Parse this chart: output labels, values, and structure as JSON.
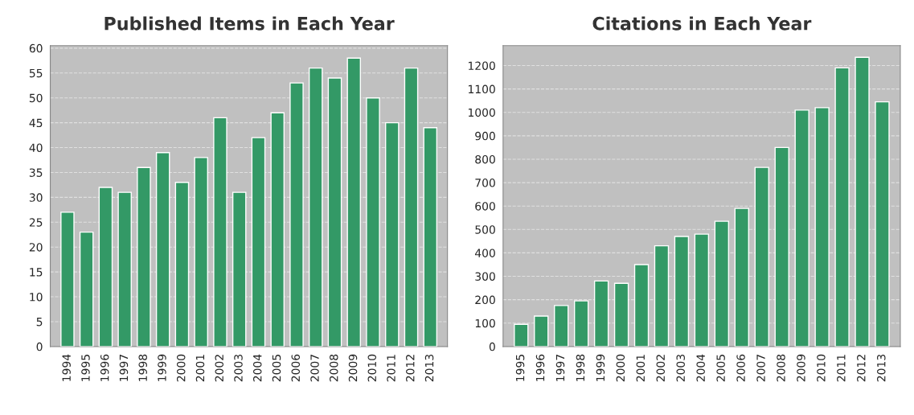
{
  "chart_data": [
    {
      "type": "bar",
      "title": "Published Items in Each Year",
      "categories": [
        "1994",
        "1995",
        "1996",
        "1997",
        "1998",
        "1999",
        "2000",
        "2001",
        "2002",
        "2003",
        "2004",
        "2005",
        "2006",
        "2007",
        "2008",
        "2009",
        "2010",
        "2011",
        "2012",
        "2013"
      ],
      "values": [
        27,
        23,
        32,
        31,
        36,
        39,
        33,
        38,
        46,
        31,
        42,
        47,
        53,
        56,
        54,
        58,
        50,
        45,
        56,
        44
      ],
      "color": "#339966",
      "ylim": [
        0,
        60.5
      ],
      "yticks": [
        0,
        5,
        10,
        15,
        20,
        25,
        30,
        35,
        40,
        45,
        50,
        55,
        60
      ],
      "grid": "y"
    },
    {
      "type": "bar",
      "title": "Citations in Each Year",
      "categories": [
        "1995",
        "1996",
        "1997",
        "1998",
        "1999",
        "2000",
        "2001",
        "2002",
        "2003",
        "2004",
        "2005",
        "2006",
        "2007",
        "2008",
        "2009",
        "2010",
        "2011",
        "2012",
        "2013"
      ],
      "values": [
        95,
        130,
        175,
        195,
        280,
        270,
        350,
        430,
        470,
        480,
        535,
        590,
        765,
        850,
        1010,
        1020,
        1190,
        1235,
        1045
      ],
      "color": "#339966",
      "ylim": [
        0,
        1285
      ],
      "yticks": [
        0,
        100,
        200,
        300,
        400,
        500,
        600,
        700,
        800,
        900,
        1000,
        1100,
        1200
      ],
      "grid": "y"
    }
  ]
}
